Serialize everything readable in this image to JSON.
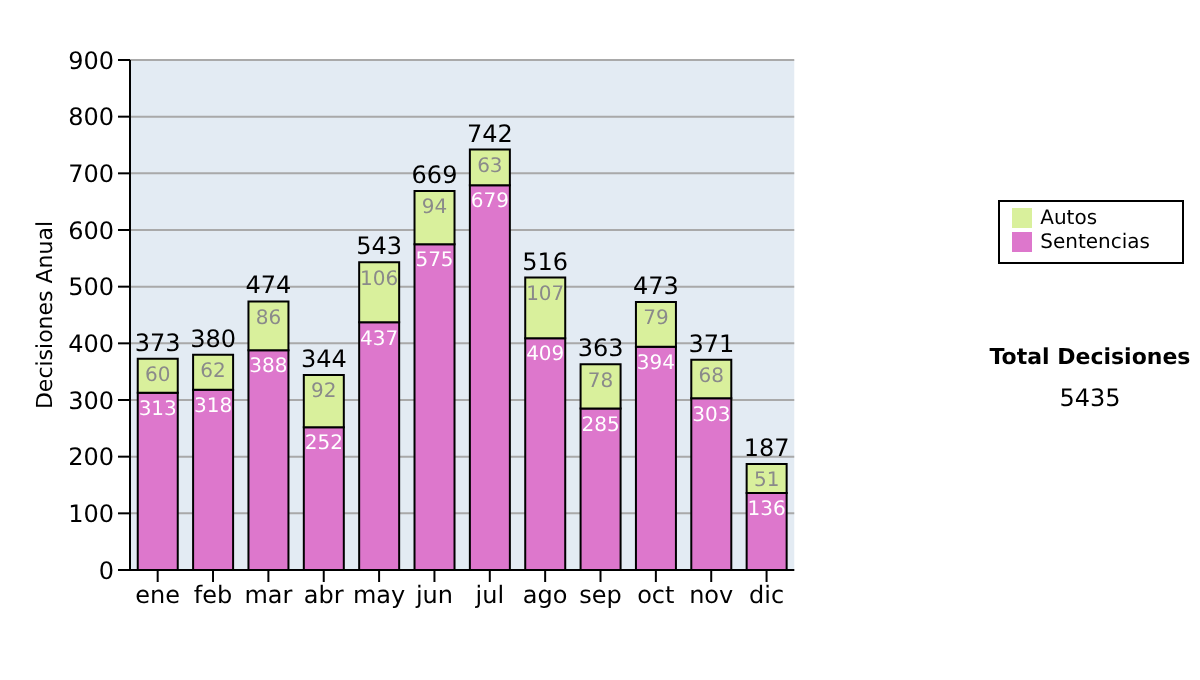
{
  "chart_data": {
    "type": "bar",
    "stacked": true,
    "ylabel": "Decisiones Anual",
    "categories": [
      "ene",
      "feb",
      "mar",
      "abr",
      "may",
      "jun",
      "jul",
      "ago",
      "sep",
      "oct",
      "nov",
      "dic"
    ],
    "series": [
      {
        "name": "Sentencias",
        "color": "#dd77cc",
        "values": [
          313,
          318,
          388,
          252,
          437,
          575,
          679,
          409,
          285,
          394,
          303,
          136
        ]
      },
      {
        "name": "Autos",
        "color": "#d9f09c",
        "values": [
          60,
          62,
          86,
          92,
          106,
          94,
          63,
          107,
          78,
          79,
          68,
          51
        ]
      }
    ],
    "totals": [
      "373",
      "380",
      "474",
      "344",
      "543",
      "669",
      "742",
      "516",
      "363",
      "473",
      "371",
      "187"
    ],
    "data_labels": true,
    "ylim": [
      0,
      900
    ],
    "yticks": [
      0,
      100,
      200,
      300,
      400,
      500,
      600,
      700,
      800,
      900
    ],
    "grid": "y",
    "legend": "right",
    "annotations": [
      "Total Decisiones",
      "5435"
    ]
  }
}
